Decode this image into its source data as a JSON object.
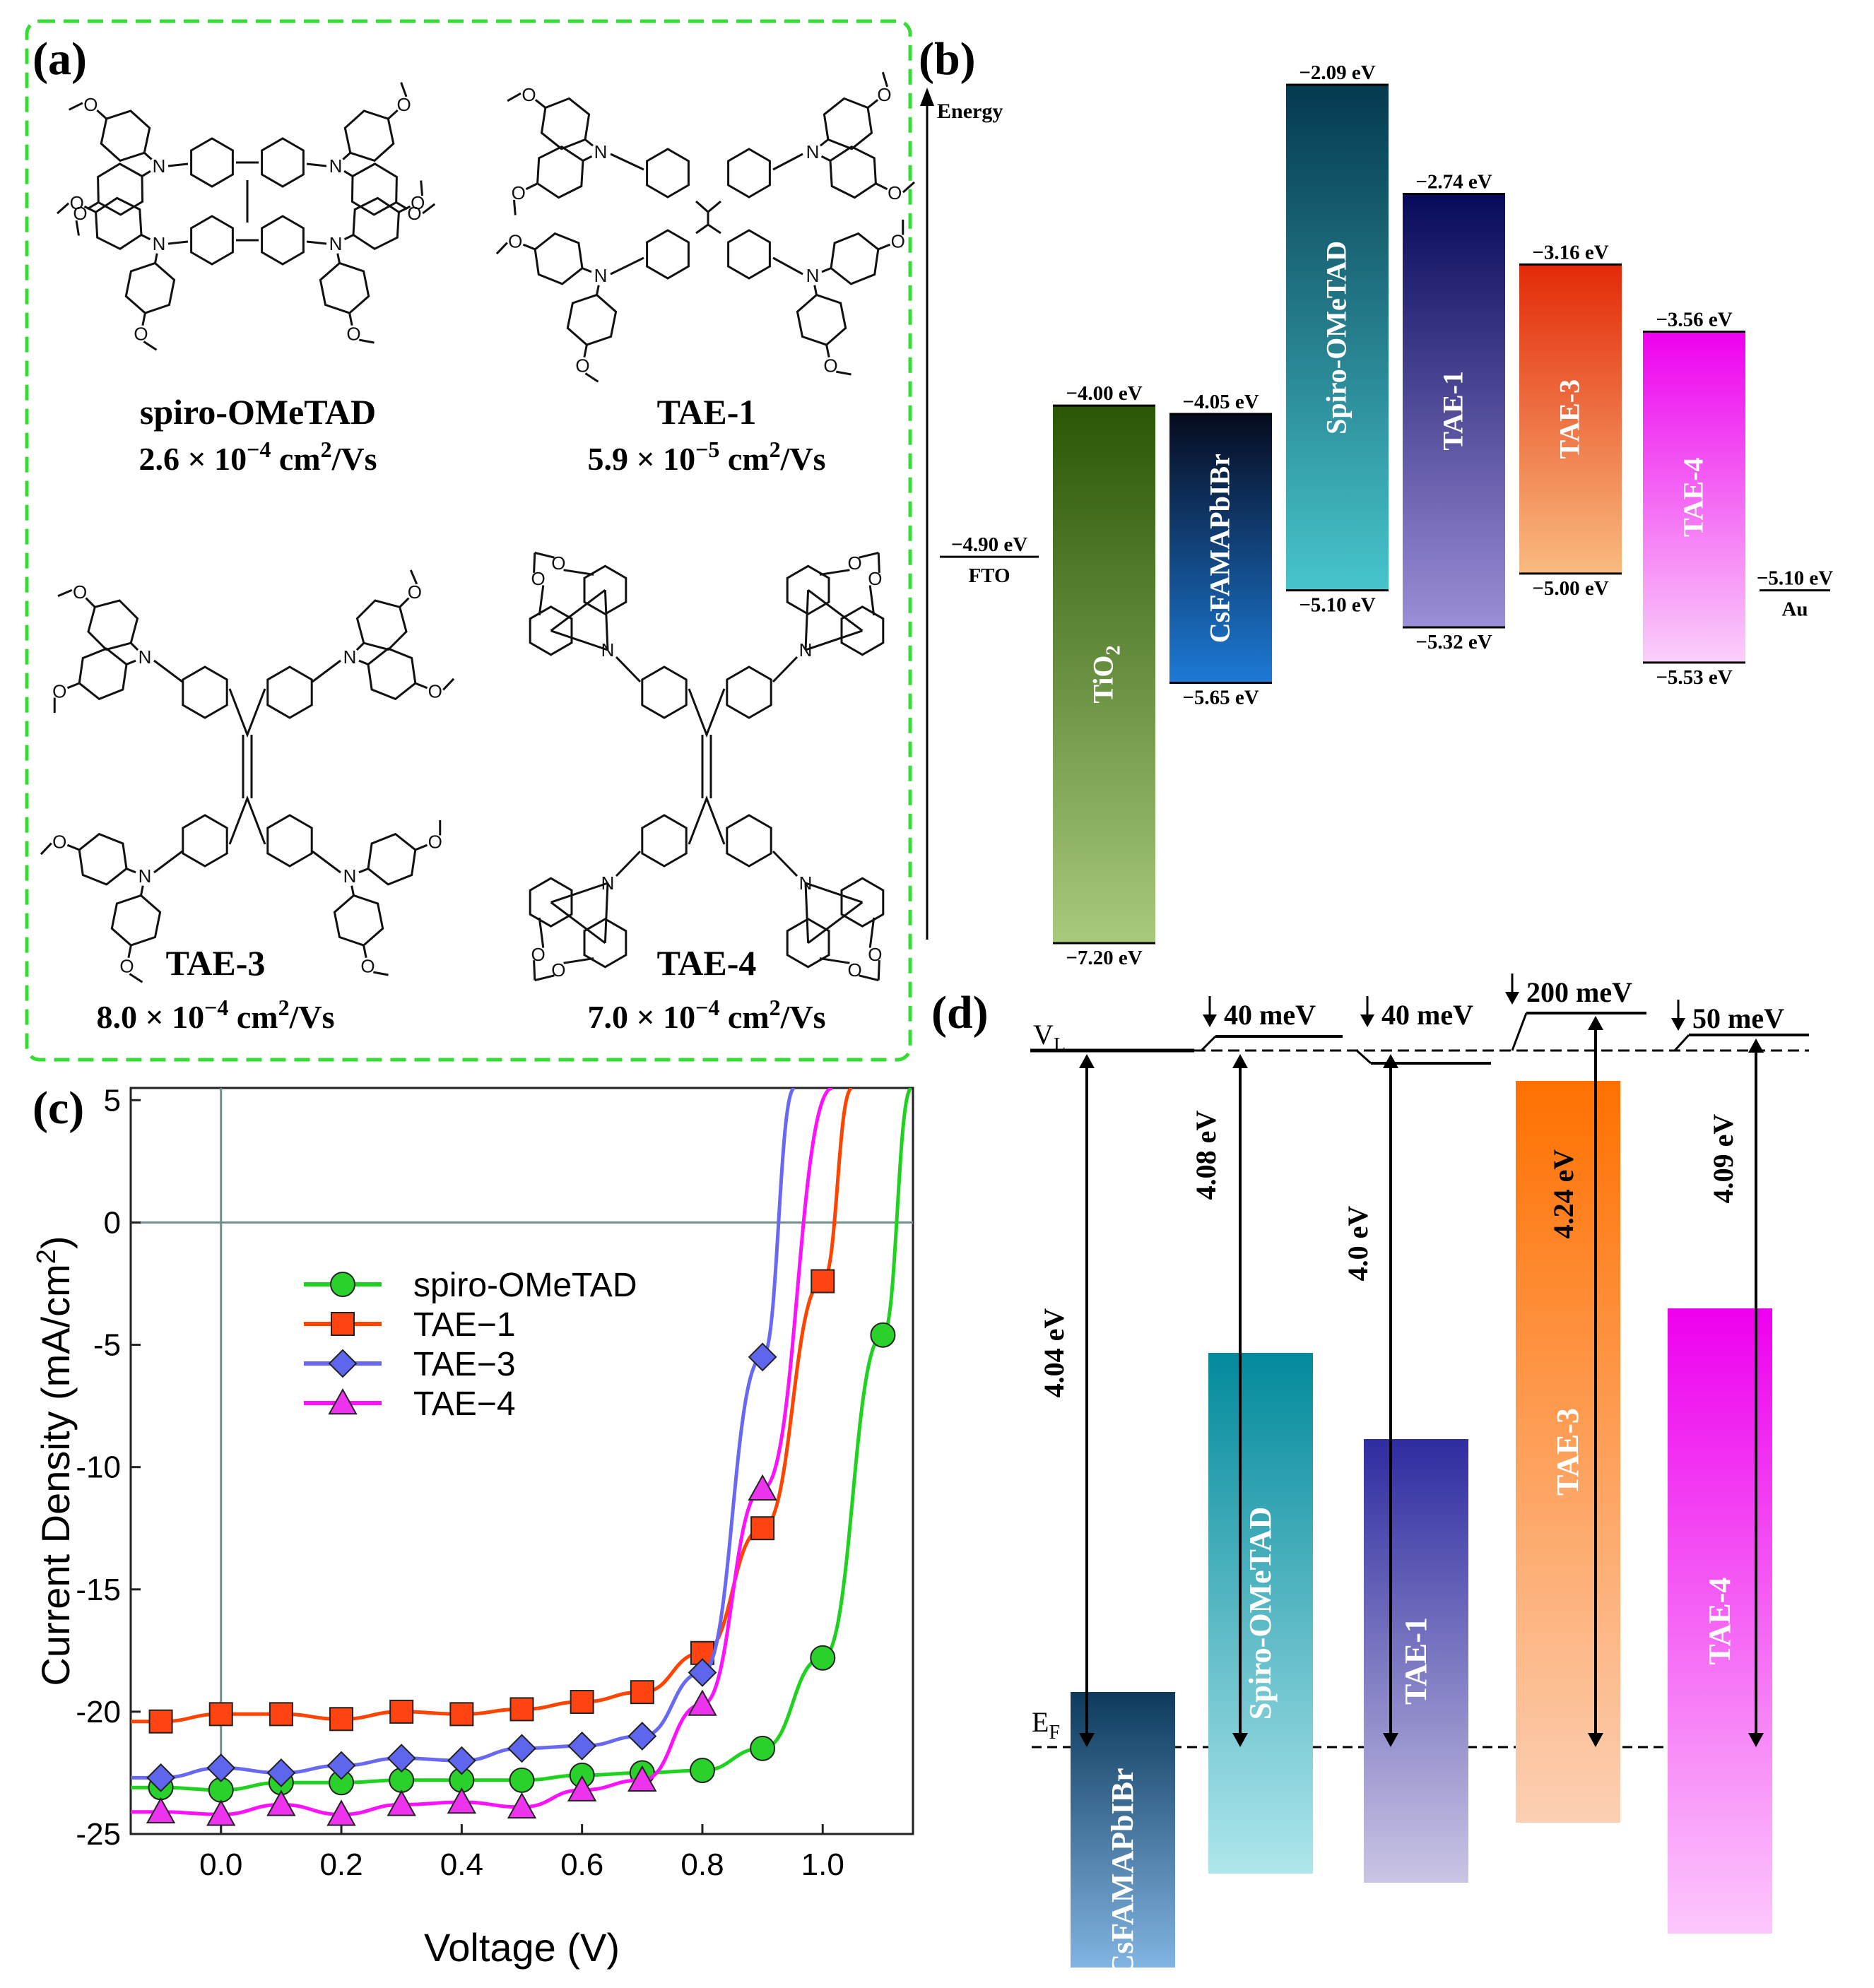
{
  "panel_a": {
    "label": "(a)",
    "molecules": [
      {
        "name": "spiro-OMeTAD",
        "mobility_base": "2.6 × 10",
        "mobility_exp": "−4",
        "mobility_unit": " cm",
        "mobility_unit_exp": "2",
        "mobility_tail": "/Vs",
        "core": "spiro"
      },
      {
        "name": "TAE-1",
        "mobility_base": "5.9 × 10",
        "mobility_exp": "−5",
        "mobility_unit": " cm",
        "mobility_unit_exp": "2",
        "mobility_tail": "/Vs",
        "core": "ethylene"
      },
      {
        "name": "TAE-3",
        "mobility_base": "8.0 × 10",
        "mobility_exp": "−4",
        "mobility_unit": " cm",
        "mobility_unit_exp": "2",
        "mobility_tail": "/Vs",
        "core": "bifluorenylidene-amine"
      },
      {
        "name": "TAE-4",
        "mobility_base": "7.0 × 10",
        "mobility_exp": "−4",
        "mobility_unit": " cm",
        "mobility_unit_exp": "2",
        "mobility_tail": "/Vs",
        "core": "bifluorenylidene-carbazole"
      }
    ],
    "atom_N": "N",
    "atom_O": "O",
    "border_color": "#33dd33"
  },
  "panel_b": {
    "label": "(b)",
    "axis_label": "Energy",
    "fto": {
      "value": "−4.90 eV",
      "name": "FTO"
    },
    "au": {
      "value": "−5.10 eV",
      "name": "Au"
    },
    "bars": [
      {
        "name": "TiO",
        "sub": "2",
        "top": "−4.00 eV",
        "bottom": "−7.20 eV",
        "c1": "#2a5606",
        "c2": "#a8ca7c"
      },
      {
        "name": "CsFAMAPbIBr",
        "sub": "",
        "top": "−4.05 eV",
        "bottom": "−5.65 eV",
        "c1": "#060b1e",
        "c2": "#1d7ad6"
      },
      {
        "name": "Spiro-OMeTAD",
        "sub": "",
        "top": "−2.09 eV",
        "bottom": "−5.10 eV",
        "c1": "#05394f",
        "c2": "#47c5cc"
      },
      {
        "name": "TAE-1",
        "sub": "",
        "top": "−2.74 eV",
        "bottom": "−5.32 eV",
        "c1": "#070a5a",
        "c2": "#9c8ed8"
      },
      {
        "name": "TAE-3",
        "sub": "",
        "top": "−3.16 eV",
        "bottom": "−5.00 eV",
        "c1": "#e32a08",
        "c2": "#f9bb80"
      },
      {
        "name": "TAE-4",
        "sub": "",
        "top": "−3.56 eV",
        "bottom": "−5.53 eV",
        "c1": "#ee00ee",
        "c2": "#fad0fa"
      }
    ]
  },
  "panel_d": {
    "label": "(d)",
    "vl": "V",
    "vl_sub": "L",
    "ef": "E",
    "ef_sub": "F",
    "offsets": [
      "40 meV",
      "40 meV",
      "200 meV",
      "50 meV"
    ],
    "works": [
      "4.04 eV",
      "4.08 eV",
      "4.0 eV",
      "4.24 eV",
      "4.09 eV"
    ],
    "bars": [
      {
        "name": "CsFAMAPbIBr",
        "c1": "#0d3a5c",
        "c2": "#82b4e2"
      },
      {
        "name": "Spiro-OMeTAD",
        "c1": "#038a9c",
        "c2": "#aee6ec"
      },
      {
        "name": "TAE-1",
        "c1": "#2e2ca0",
        "c2": "#cac5e4"
      },
      {
        "name": "TAE-3",
        "c1": "#ff7000",
        "c2": "#fcd0b4"
      },
      {
        "name": "TAE-4",
        "c1": "#ee00ee",
        "c2": "#fcc8fc"
      }
    ]
  },
  "chart_data": {
    "label": "(c)",
    "type": "line",
    "title": "",
    "xlabel": "Voltage (V)",
    "ylabel": "Current Density (mA/cm²)",
    "ylabel_base": "Current Density (mA/cm",
    "ylabel_sup": "2",
    "ylabel_tail": ")",
    "xlim": [
      -0.15,
      1.15
    ],
    "ylim": [
      -25,
      5.5
    ],
    "xticks": [
      0.0,
      0.2,
      0.4,
      0.6,
      0.8,
      1.0
    ],
    "xtick_labels": [
      "0.0",
      "0.2",
      "0.4",
      "0.6",
      "0.8",
      "1.0"
    ],
    "yticks": [
      5,
      0,
      -5,
      -10,
      -15,
      -20,
      -25
    ],
    "ytick_labels": [
      "5",
      "0",
      "-5",
      "-10",
      "-15",
      "-20",
      "-25"
    ],
    "legend_position": "upper-left inside",
    "series": [
      {
        "name": "spiro-OMeTAD",
        "color": "#1fd21f",
        "marker": "circle",
        "marker_fill": "#2bd12b",
        "x": [
          -0.1,
          0.0,
          0.1,
          0.2,
          0.3,
          0.4,
          0.5,
          0.6,
          0.7,
          0.8,
          0.9,
          1.0,
          1.1
        ],
        "y": [
          -23.1,
          -23.2,
          -22.9,
          -22.9,
          -22.8,
          -22.8,
          -22.8,
          -22.6,
          -22.5,
          -22.4,
          -21.5,
          -17.8,
          -4.6
        ]
      },
      {
        "name": "TAE−1",
        "color": "#ff4400",
        "marker": "square",
        "marker_fill": "#ff4411",
        "x": [
          -0.1,
          0.0,
          0.1,
          0.2,
          0.3,
          0.4,
          0.5,
          0.6,
          0.7,
          0.8,
          0.9,
          1.0
        ],
        "y": [
          -20.4,
          -20.1,
          -20.1,
          -20.3,
          -20.0,
          -20.1,
          -19.9,
          -19.6,
          -19.2,
          -17.6,
          -12.5,
          -2.4
        ]
      },
      {
        "name": "TAE−3",
        "color": "#6868f2",
        "marker": "diamond",
        "marker_fill": "#5f66ee",
        "x": [
          -0.1,
          0.0,
          0.1,
          0.2,
          0.3,
          0.4,
          0.5,
          0.6,
          0.7,
          0.8,
          0.9
        ],
        "y": [
          -22.7,
          -22.3,
          -22.5,
          -22.2,
          -21.9,
          -22.0,
          -21.5,
          -21.4,
          -21.0,
          -18.4,
          -5.5
        ]
      },
      {
        "name": "TAE−4",
        "color": "#ff10ff",
        "marker": "triangle",
        "marker_fill": "#ee33ee",
        "x": [
          -0.1,
          0.0,
          0.1,
          0.2,
          0.3,
          0.4,
          0.5,
          0.6,
          0.7,
          0.8,
          0.9
        ],
        "y": [
          -24.1,
          -24.2,
          -23.8,
          -24.2,
          -23.8,
          -23.7,
          -23.9,
          -23.2,
          -22.8,
          -19.7,
          -10.9
        ]
      }
    ]
  }
}
